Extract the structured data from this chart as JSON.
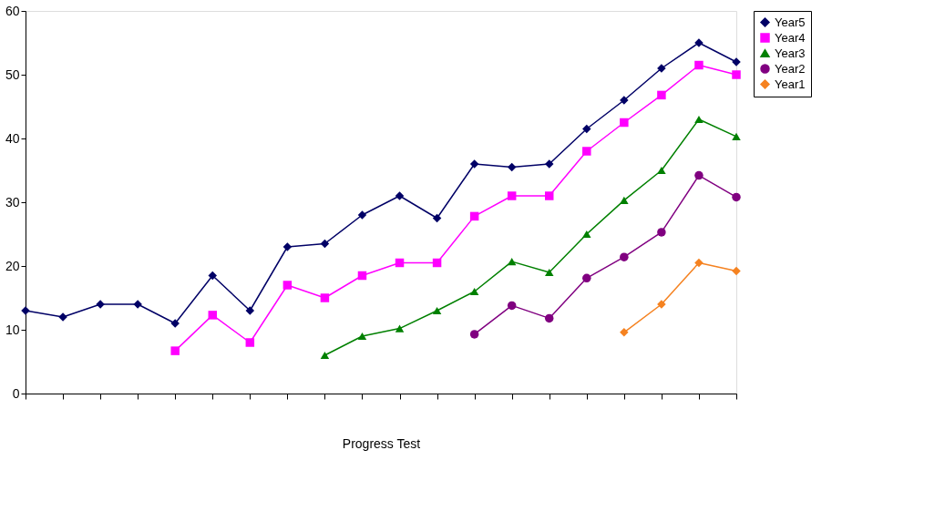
{
  "chart_data": {
    "type": "line",
    "xlabel": "Progress Test",
    "categories": [
      null,
      null,
      null,
      null,
      null,
      null,
      null,
      null,
      null,
      null,
      null,
      null,
      null,
      null,
      null,
      null,
      null,
      null,
      null,
      null
    ],
    "ylim": [
      0,
      60
    ],
    "yticks": [
      0,
      10,
      20,
      30,
      40,
      50,
      60
    ],
    "grid": false,
    "legend": "right",
    "line_style": "solid",
    "series": [
      {
        "name": "Year5",
        "color": "#000066",
        "marker": "diamond",
        "values": [
          13,
          12,
          14,
          14,
          11,
          18.5,
          13,
          23,
          23.5,
          28,
          31,
          27.5,
          36,
          35.5,
          36,
          41.5,
          46,
          51,
          55,
          52
        ]
      },
      {
        "name": "Year4",
        "color": "#ff00ff",
        "marker": "square",
        "values": [
          null,
          null,
          null,
          null,
          6.7,
          12.3,
          8,
          17,
          15,
          18.5,
          20.5,
          20.5,
          27.8,
          31,
          31,
          38,
          42.5,
          46.8,
          51.5,
          50
        ]
      },
      {
        "name": "Year3",
        "color": "#008000",
        "marker": "triangle",
        "values": [
          null,
          null,
          null,
          null,
          null,
          null,
          null,
          null,
          6,
          9,
          10.2,
          13,
          16,
          20.7,
          19,
          25,
          30.3,
          35,
          43,
          40.3
        ]
      },
      {
        "name": "Year2",
        "color": "#800080",
        "marker": "circle",
        "values": [
          null,
          null,
          null,
          null,
          null,
          null,
          null,
          null,
          null,
          null,
          null,
          null,
          9.3,
          13.8,
          11.8,
          18.1,
          21.4,
          25.3,
          34.2,
          30.8
        ]
      },
      {
        "name": "Year1",
        "color": "#f58220",
        "marker": "diamond",
        "values": [
          null,
          null,
          null,
          null,
          null,
          null,
          null,
          null,
          null,
          null,
          null,
          null,
          null,
          null,
          null,
          null,
          9.6,
          14,
          20.5,
          19.2
        ]
      }
    ]
  }
}
